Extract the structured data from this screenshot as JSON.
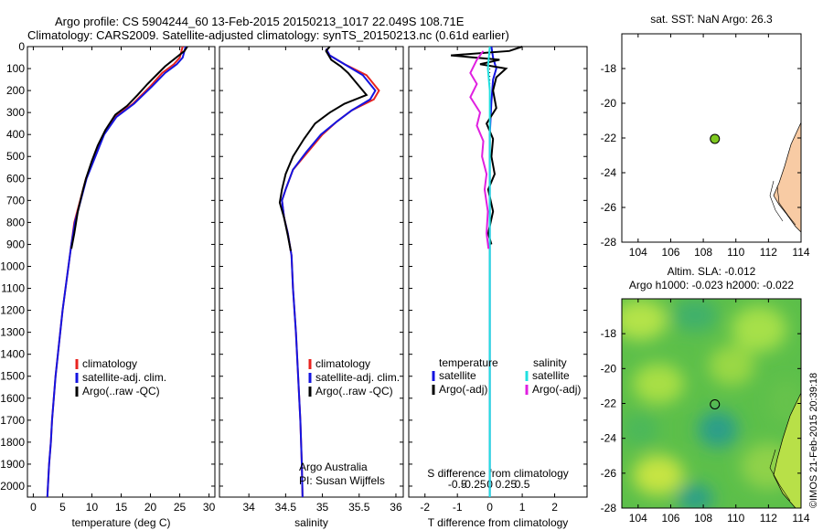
{
  "header": {
    "line1": "Argo profile: CS 5904244_60 13-Feb-2015 20150213_1017 22.049S 108.71E",
    "line2": "Climatology: CARS2009. Satellite-adjusted climatology: synTS_20150213.nc (0.61d earlier)"
  },
  "colors": {
    "climatology": "#e8231f",
    "satellite": "#1414e0",
    "argo": "#000000",
    "argo_salinity_diff": "#e020e0",
    "satellite_salinity_diff": "#20e0e0"
  },
  "credit": "©IMOS 21-Feb-2015 20:39:18",
  "chart_data": [
    {
      "type": "line",
      "id": "temperature",
      "xlabel": "temperature (deg C)",
      "ylabel": "",
      "xlim": [
        -1,
        31
      ],
      "ylim": [
        2050,
        0
      ],
      "x_ticks": [
        0,
        5,
        10,
        15,
        20,
        25,
        30
      ],
      "y_ticks": [
        0,
        100,
        200,
        300,
        400,
        500,
        600,
        700,
        800,
        900,
        1000,
        1100,
        1200,
        1300,
        1400,
        1500,
        1600,
        1700,
        1800,
        1900,
        2000
      ],
      "legend": {
        "placement": "bottom-left",
        "entries": [
          "climatology",
          "satellite-adj. clim.",
          "Argo(..raw -QC)"
        ]
      },
      "series": [
        {
          "name": "climatology",
          "color": "#e8231f",
          "points": [
            [
              25.5,
              0
            ],
            [
              25,
              50
            ],
            [
              24,
              80
            ],
            [
              22,
              120
            ],
            [
              20,
              180
            ],
            [
              17,
              260
            ],
            [
              14,
              320
            ],
            [
              12,
              400
            ],
            [
              10.5,
              500
            ],
            [
              9,
              600
            ],
            [
              8,
              700
            ],
            [
              7,
              800
            ],
            [
              6.5,
              900
            ],
            [
              6,
              1000
            ],
            [
              5.5,
              1100
            ],
            [
              5,
              1200
            ],
            [
              4.6,
              1300
            ],
            [
              4.2,
              1400
            ],
            [
              3.8,
              1500
            ],
            [
              3.5,
              1600
            ],
            [
              3.2,
              1700
            ],
            [
              3,
              1800
            ],
            [
              2.7,
              1900
            ],
            [
              2.5,
              2000
            ],
            [
              2.4,
              2050
            ]
          ]
        },
        {
          "name": "satellite-adj. clim.",
          "color": "#1414e0",
          "points": [
            [
              26,
              0
            ],
            [
              25.5,
              50
            ],
            [
              24.5,
              80
            ],
            [
              22.5,
              120
            ],
            [
              20.3,
              180
            ],
            [
              17.2,
              260
            ],
            [
              14.2,
              320
            ],
            [
              12.1,
              400
            ],
            [
              10.6,
              500
            ],
            [
              9.1,
              600
            ],
            [
              8.1,
              700
            ],
            [
              7.1,
              800
            ],
            [
              6.5,
              900
            ],
            [
              6,
              1000
            ],
            [
              5.5,
              1100
            ],
            [
              5,
              1200
            ],
            [
              4.6,
              1300
            ],
            [
              4.2,
              1400
            ],
            [
              3.8,
              1500
            ],
            [
              3.5,
              1600
            ],
            [
              3.2,
              1700
            ],
            [
              3,
              1800
            ],
            [
              2.7,
              1900
            ],
            [
              2.5,
              2000
            ],
            [
              2.4,
              2050
            ]
          ]
        },
        {
          "name": "Argo(..raw -QC)",
          "color": "#000000",
          "points": [
            [
              26.3,
              0
            ],
            [
              25.8,
              20
            ],
            [
              22.5,
              90
            ],
            [
              21,
              130
            ],
            [
              19.5,
              170
            ],
            [
              17.8,
              220
            ],
            [
              16,
              270
            ],
            [
              14,
              310
            ],
            [
              12.3,
              380
            ],
            [
              11,
              450
            ],
            [
              10,
              520
            ],
            [
              9,
              600
            ],
            [
              8.5,
              650
            ],
            [
              7.6,
              750
            ],
            [
              7,
              850
            ],
            [
              6.5,
              920
            ]
          ]
        }
      ]
    },
    {
      "type": "line",
      "id": "salinity",
      "xlabel": "salinity",
      "ylabel": "",
      "xlim": [
        33.6,
        36.1
      ],
      "ylim": [
        2050,
        0
      ],
      "x_ticks": [
        34,
        34.5,
        35,
        35.5,
        36
      ],
      "legend": {
        "placement": "bottom-right",
        "entries": [
          "climatology",
          "satellite-adj. clim.",
          "Argo(..raw -QC)"
        ]
      },
      "annotations": [
        "Argo Australia",
        "PI: Susan Wijffels"
      ],
      "series": [
        {
          "name": "climatology",
          "color": "#e8231f",
          "points": [
            [
              35.05,
              10
            ],
            [
              35.1,
              40
            ],
            [
              35.3,
              80
            ],
            [
              35.6,
              130
            ],
            [
              35.77,
              200
            ],
            [
              35.7,
              240
            ],
            [
              35.4,
              290
            ],
            [
              35.2,
              340
            ],
            [
              35.0,
              400
            ],
            [
              34.8,
              480
            ],
            [
              34.6,
              560
            ],
            [
              34.5,
              650
            ],
            [
              34.45,
              700
            ],
            [
              34.48,
              780
            ],
            [
              34.53,
              850
            ],
            [
              34.58,
              950
            ],
            [
              34.6,
              1100
            ],
            [
              34.64,
              1300
            ],
            [
              34.67,
              1500
            ],
            [
              34.7,
              1700
            ],
            [
              34.72,
              1900
            ],
            [
              34.73,
              2050
            ]
          ]
        },
        {
          "name": "satellite-adj. clim.",
          "color": "#1414e0",
          "points": [
            [
              35.05,
              10
            ],
            [
              35.1,
              40
            ],
            [
              35.3,
              80
            ],
            [
              35.55,
              130
            ],
            [
              35.72,
              200
            ],
            [
              35.65,
              240
            ],
            [
              35.4,
              290
            ],
            [
              35.2,
              340
            ],
            [
              34.98,
              400
            ],
            [
              34.78,
              480
            ],
            [
              34.6,
              560
            ],
            [
              34.5,
              650
            ],
            [
              34.45,
              700
            ],
            [
              34.48,
              780
            ],
            [
              34.53,
              850
            ],
            [
              34.58,
              950
            ],
            [
              34.6,
              1100
            ],
            [
              34.64,
              1300
            ],
            [
              34.67,
              1500
            ],
            [
              34.7,
              1700
            ],
            [
              34.72,
              1900
            ],
            [
              34.73,
              2050
            ]
          ]
        },
        {
          "name": "Argo(..raw -QC)",
          "color": "#000000",
          "points": [
            [
              35.1,
              0
            ],
            [
              35.05,
              20
            ],
            [
              35.12,
              60
            ],
            [
              35.25,
              90
            ],
            [
              35.35,
              120
            ],
            [
              35.45,
              160
            ],
            [
              35.55,
              200
            ],
            [
              35.6,
              220
            ],
            [
              35.3,
              260
            ],
            [
              35.1,
              300
            ],
            [
              34.9,
              350
            ],
            [
              34.75,
              420
            ],
            [
              34.6,
              500
            ],
            [
              34.5,
              580
            ],
            [
              34.45,
              650
            ],
            [
              34.42,
              710
            ],
            [
              34.48,
              780
            ],
            [
              34.53,
              860
            ],
            [
              34.57,
              930
            ]
          ]
        }
      ]
    },
    {
      "type": "line",
      "id": "difference",
      "xlabel": "T difference from climatology",
      "top_axis_label": "S difference from climatology",
      "ylabel": "",
      "xlim": [
        -2.5,
        3
      ],
      "x_ticks": [
        -2,
        -1,
        0,
        1,
        2
      ],
      "top_ticks": [
        -0.5,
        -0.25,
        0,
        0.25,
        0.5
      ],
      "ylim": [
        2050,
        0
      ],
      "legend": {
        "placement": "bottom",
        "temperature_title": "temperature",
        "salinity_title": "salinity",
        "entries": [
          "satellite",
          "Argo(-adj)",
          "satellite",
          "Argo(-adj)"
        ]
      },
      "series": [
        {
          "name": "T satellite",
          "color": "#1414e0",
          "points": [
            [
              0.05,
              0
            ],
            [
              0.1,
              50
            ],
            [
              0.2,
              100
            ],
            [
              0.1,
              150
            ],
            [
              0.05,
              250
            ],
            [
              0,
              400
            ],
            [
              0,
              700
            ],
            [
              0,
              1000
            ],
            [
              0,
              1500
            ],
            [
              0,
              2050
            ]
          ]
        },
        {
          "name": "T Argo(-adj)",
          "color": "#000000",
          "points": [
            [
              1,
              0
            ],
            [
              0.6,
              20
            ],
            [
              -1.2,
              40
            ],
            [
              0.3,
              60
            ],
            [
              -0.3,
              80
            ],
            [
              0.5,
              100
            ],
            [
              0.2,
              140
            ],
            [
              0.1,
              200
            ],
            [
              0.2,
              280
            ],
            [
              -0.1,
              350
            ],
            [
              0.1,
              420
            ],
            [
              0.05,
              500
            ],
            [
              0.15,
              580
            ],
            [
              -0.05,
              650
            ],
            [
              0.1,
              750
            ],
            [
              -0.05,
              850
            ],
            [
              0.05,
              900
            ]
          ]
        },
        {
          "name": "S satellite",
          "color": "#20e0e0",
          "points": [
            [
              0,
              0
            ],
            [
              -0.03,
              100
            ],
            [
              0,
              200
            ],
            [
              0,
              500
            ],
            [
              0,
              1000
            ],
            [
              0,
              1500
            ],
            [
              0,
              2050
            ]
          ]
        },
        {
          "name": "S Argo(-adj)",
          "color": "#e020e0",
          "points": [
            [
              -0.1,
              20
            ],
            [
              -0.2,
              60
            ],
            [
              -0.3,
              120
            ],
            [
              -0.2,
              170
            ],
            [
              -0.3,
              230
            ],
            [
              -0.15,
              300
            ],
            [
              -0.2,
              360
            ],
            [
              -0.1,
              430
            ],
            [
              -0.12,
              500
            ],
            [
              -0.05,
              580
            ],
            [
              -0.08,
              650
            ],
            [
              -0.03,
              750
            ],
            [
              -0.05,
              850
            ],
            [
              -0.02,
              920
            ]
          ]
        }
      ]
    },
    {
      "type": "scatter",
      "id": "sst_map",
      "title": "sat. SST: NaN Argo: 26.3",
      "xlim": [
        103,
        114
      ],
      "ylim": [
        -28,
        -16
      ],
      "x_ticks": [
        104,
        106,
        108,
        110,
        112,
        114
      ],
      "y_ticks": [
        -18,
        -20,
        -22,
        -24,
        -26,
        -28
      ],
      "points": [
        {
          "x": 108.71,
          "y": -22.05,
          "color": "#7ec820"
        }
      ]
    },
    {
      "type": "heatmap",
      "id": "sla_map",
      "title_line1": "Altim. SLA: -0.012",
      "title_line2": "Argo h1000: -0.023 h2000: -0.022",
      "xlim": [
        103,
        114
      ],
      "ylim": [
        -28,
        -16
      ],
      "x_ticks": [
        104,
        106,
        108,
        110,
        112,
        114
      ],
      "y_ticks": [
        -18,
        -20,
        -22,
        -24,
        -26,
        -28
      ],
      "points": [
        {
          "x": 108.71,
          "y": -22.05
        }
      ]
    }
  ]
}
